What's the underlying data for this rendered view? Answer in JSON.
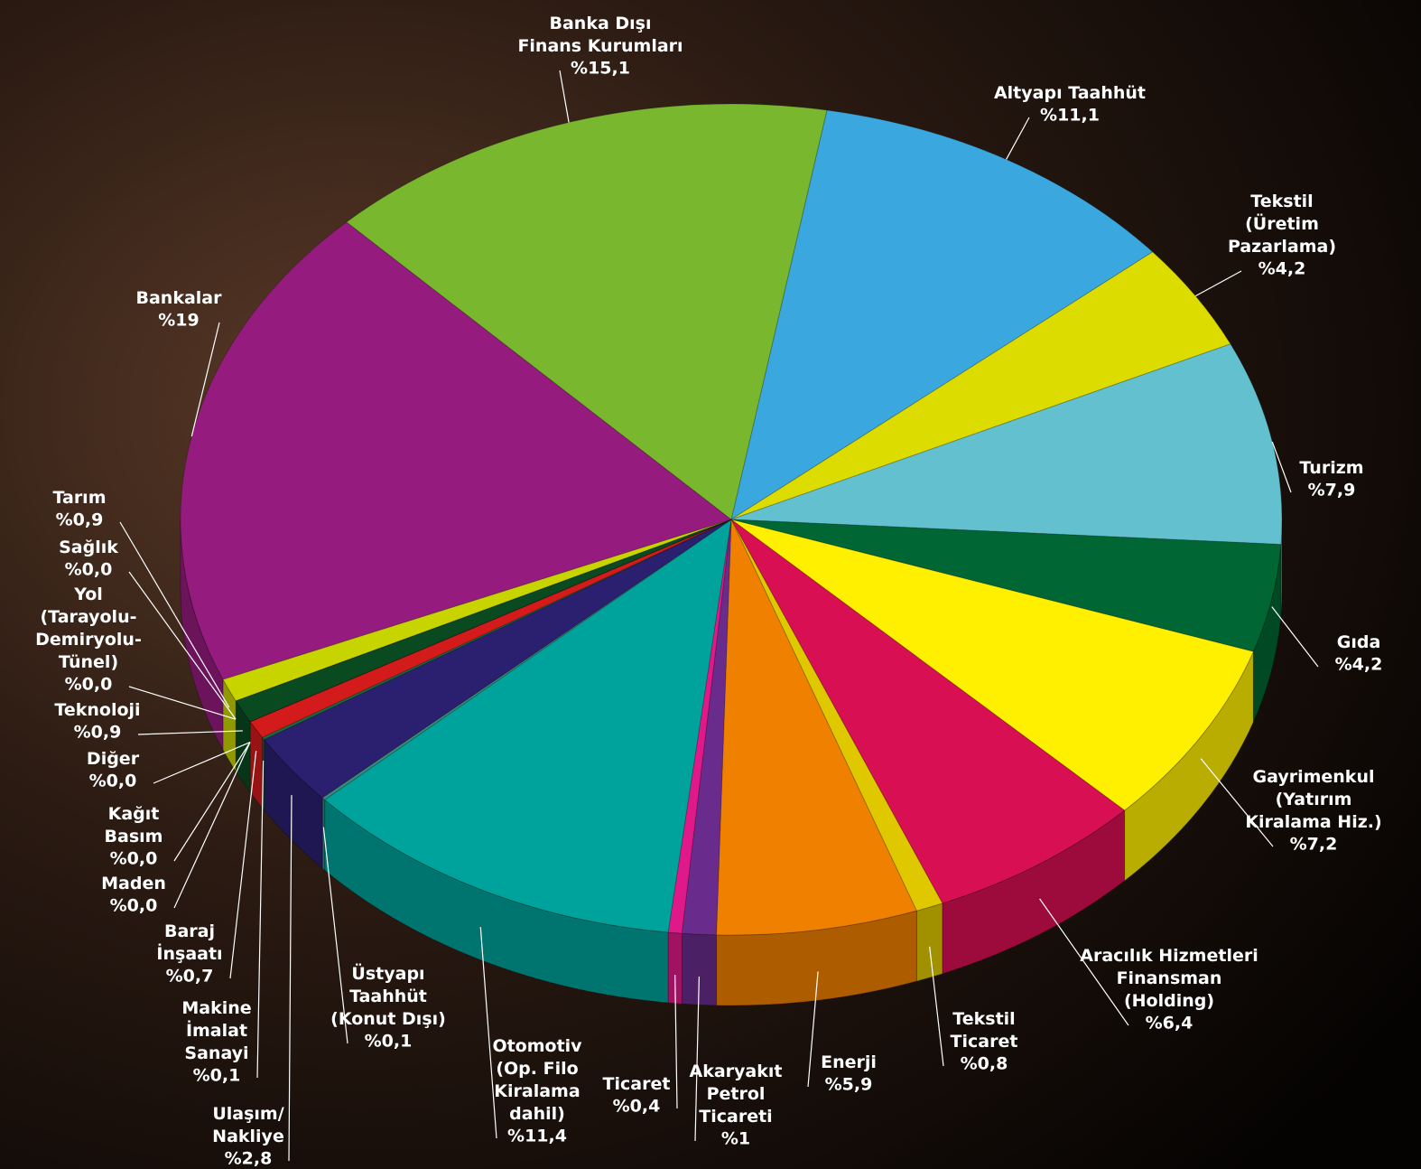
{
  "chart_data": {
    "type": "pie",
    "categories": [
      "Altyapı Taahhüt",
      "Tekstil\n(Üretim\nPazarlama)",
      "Turizm",
      "Gıda",
      "Gayrimenkul\n(Yatırım\nKiralama Hiz.)",
      "Aracılık Hizmetleri\nFinansman\n(Holding)",
      "Tekstil\nTicaret",
      "Enerji",
      "Akaryakıt\nPetrol\nTicareti",
      "Ticaret",
      "Otomotiv\n(Op. Filo\nKiralama\ndahil)",
      "Üstyapı\nTaahhüt\n(Konut Dışı)",
      "Ulaşım/\nNakliye",
      "Makine\nİmalat\nSanayi",
      "Baraj\nİnşaatı",
      "Maden",
      "Kağıt\nBasım",
      "Diğer",
      "Teknoloji",
      "Yol\n(Tarayolu-\nDemiryolu-\nTünel)",
      "Sağlık",
      "Tarım",
      "Bankalar",
      "Banka Dışı\nFinans Kurumları"
    ],
    "values": [
      11.1,
      4.2,
      7.9,
      4.2,
      7.2,
      6.4,
      0.8,
      5.9,
      1,
      0.4,
      11.4,
      0.1,
      2.8,
      0.1,
      0.7,
      0,
      0,
      0,
      0.9,
      0,
      0,
      0.9,
      19,
      15.1
    ],
    "value_labels": [
      "%11,1",
      "%4,2",
      "%7,9",
      "%4,2",
      "%7,2",
      "%6,4",
      "%0,8",
      "%5,9",
      "%1",
      "%0,4",
      "%11,4",
      "%0,1",
      "%2,8",
      "%0,1",
      "%0,7",
      "%0,0",
      "%0,0",
      "%0,0",
      "%0,9",
      "%0,0",
      "%0,0",
      "%0,9",
      "%19",
      "%15,1"
    ],
    "colors": [
      "#3aa8de",
      "#dcdc00",
      "#63c1cf",
      "#006633",
      "#fff000",
      "#d80f52",
      "#e0c800",
      "#f08000",
      "#6a2c8c",
      "#e0198a",
      "#00a39c",
      "#3a8a80",
      "#2b2070",
      "#1a6a40",
      "#d31b1b",
      "#555555",
      "#777777",
      "#999999",
      "#0a4a20",
      "#446644",
      "#ccccff",
      "#c8d400",
      "#951c7e",
      "#78b72e"
    ]
  }
}
